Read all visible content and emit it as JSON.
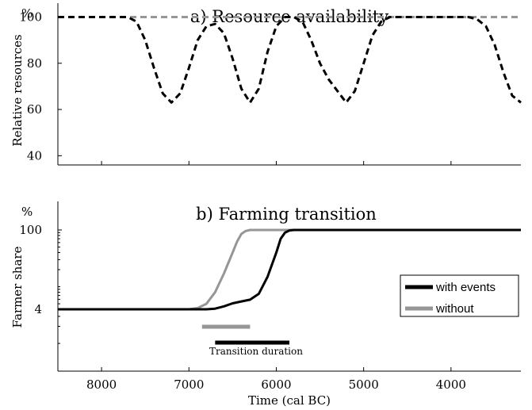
{
  "chart_data": [
    {
      "type": "line",
      "title": "a) Resource availability",
      "unit_label": "%",
      "xlabel": "",
      "ylabel": "Relative resources",
      "xlim": [
        8500,
        3200
      ],
      "xaxis_reversed": true,
      "ylim": [
        36,
        106
      ],
      "yticks": [
        40,
        60,
        80,
        100
      ],
      "xticks": [
        8000,
        7000,
        6000,
        5000,
        4000
      ],
      "x_tick_labels_shown": false,
      "grid": false,
      "series": [
        {
          "color": "#000000",
          "style": "dashed",
          "x": [
            8500,
            7700,
            7600,
            7500,
            7400,
            7300,
            7200,
            7100,
            7000,
            6900,
            6800,
            6700,
            6600,
            6500,
            6400,
            6300,
            6200,
            6100,
            6000,
            5900,
            5800,
            5700,
            5600,
            5500,
            5400,
            5300,
            5200,
            5100,
            5000,
            4900,
            4800,
            4700,
            4600,
            4000,
            3800,
            3700,
            3600,
            3500,
            3400,
            3300,
            3200
          ],
          "y": [
            100,
            100,
            98,
            90,
            78,
            67,
            63,
            67,
            78,
            90,
            96,
            97,
            93,
            82,
            69,
            63,
            69,
            85,
            96,
            100,
            100,
            98,
            90,
            80,
            73,
            68,
            63,
            68,
            80,
            92,
            98,
            100,
            100,
            100,
            100,
            99,
            96,
            88,
            76,
            66,
            63
          ]
        },
        {
          "color": "#969696",
          "style": "dashed",
          "x": [
            8500,
            3200
          ],
          "y": [
            100,
            100
          ]
        }
      ]
    },
    {
      "type": "line",
      "title": "b) Farming transition",
      "unit_label": "%",
      "xlabel": "Time (cal BC)",
      "ylabel": "Farmer share",
      "xlim": [
        8500,
        3200
      ],
      "xaxis_reversed": true,
      "yscale": "log",
      "yticks": [
        4,
        100
      ],
      "xticks": [
        8000,
        7000,
        6000,
        5000,
        4000
      ],
      "grid": false,
      "legend": {
        "placement": "right",
        "entries": [
          "with events",
          "without"
        ]
      },
      "series": [
        {
          "name": "with events",
          "color": "#000000",
          "x": [
            8500,
            7000,
            6800,
            6700,
            6600,
            6500,
            6400,
            6300,
            6200,
            6100,
            6000,
            5950,
            5900,
            5850,
            5800,
            3200
          ],
          "y": [
            4,
            4,
            4,
            4.1,
            4.5,
            5.1,
            5.5,
            5.9,
            7.5,
            15,
            40,
            70,
            90,
            98,
            100,
            100
          ]
        },
        {
          "name": "without",
          "color": "#969696",
          "x": [
            8500,
            7000,
            6900,
            6800,
            6700,
            6600,
            6500,
            6450,
            6400,
            6350,
            6300,
            3200
          ],
          "y": [
            4,
            4,
            4.2,
            5,
            8,
            17,
            40,
            62,
            85,
            96,
            100,
            100
          ]
        }
      ],
      "annotations": {
        "label": "Transition duration",
        "bars": [
          {
            "series": "without",
            "color": "#969696",
            "x_start": 6850,
            "x_end": 6300
          },
          {
            "series": "with events",
            "color": "#000000",
            "x_start": 6700,
            "x_end": 5850
          }
        ]
      }
    }
  ]
}
